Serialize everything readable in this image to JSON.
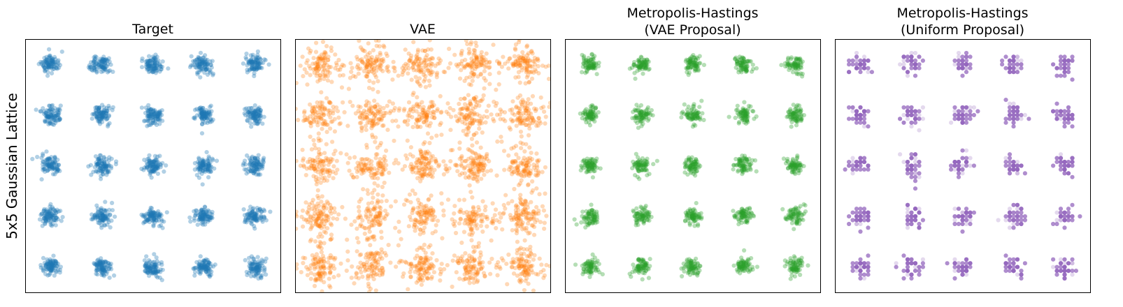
{
  "figure": {
    "row_label": "5x5 Gaussian Lattice"
  },
  "chart_data": [
    {
      "type": "scatter",
      "title": "Target",
      "title_lines": [
        "Target"
      ],
      "xlabel": "",
      "ylabel": "5x5 Gaussian Lattice",
      "xlim": [
        -2.5,
        2.5
      ],
      "ylim": [
        -2.5,
        2.5
      ],
      "grid": false,
      "axis_ticks": false,
      "color": "#1f77b4",
      "opacity": 0.35,
      "cluster_centers_x": [
        -2,
        -1,
        0,
        1,
        2
      ],
      "cluster_centers_y": [
        -2,
        -1,
        0,
        1,
        2
      ],
      "cluster_spread": 0.09,
      "points_per_cluster": 90,
      "style": "gaussian"
    },
    {
      "type": "scatter",
      "title": "VAE",
      "title_lines": [
        "VAE"
      ],
      "xlabel": "",
      "ylabel": "",
      "xlim": [
        -2.5,
        2.5
      ],
      "ylim": [
        -2.5,
        2.5
      ],
      "grid": false,
      "axis_ticks": false,
      "color": "#ff7f0e",
      "opacity": 0.3,
      "cluster_centers_x": [
        -2,
        -1,
        0,
        1,
        2
      ],
      "cluster_centers_y": [
        -2,
        -1,
        0,
        1,
        2
      ],
      "cluster_spread": 0.16,
      "points_per_cluster": 70,
      "background_points": 900,
      "style": "diffuse"
    },
    {
      "type": "scatter",
      "title": "Metropolis-Hastings (VAE Proposal)",
      "title_lines": [
        "Metropolis-Hastings",
        "(VAE Proposal)"
      ],
      "xlabel": "",
      "ylabel": "",
      "xlim": [
        -2.5,
        2.5
      ],
      "ylim": [
        -2.5,
        2.5
      ],
      "grid": false,
      "axis_ticks": false,
      "color": "#2ca02c",
      "opacity": 0.35,
      "cluster_centers_x": [
        -2,
        -1,
        0,
        1,
        2
      ],
      "cluster_centers_y": [
        -2,
        -1,
        0,
        1,
        2
      ],
      "cluster_spread": 0.085,
      "points_per_cluster": 70,
      "style": "gaussian"
    },
    {
      "type": "scatter",
      "title": "Metropolis-Hastings (Uniform Proposal)",
      "title_lines": [
        "Metropolis-Hastings",
        "(Uniform Proposal)"
      ],
      "xlabel": "",
      "ylabel": "",
      "xlim": [
        -2.5,
        2.5
      ],
      "ylim": [
        -2.5,
        2.5
      ],
      "grid": false,
      "axis_ticks": false,
      "color": "#9467bd",
      "opacity": 0.45,
      "cluster_centers_x": [
        -2,
        -1,
        0,
        1,
        2
      ],
      "cluster_centers_y": [
        -2,
        -1,
        0,
        1,
        2
      ],
      "cluster_spread": 0.1,
      "points_per_cluster": 40,
      "grid_step": 0.075,
      "style": "lattice"
    }
  ]
}
